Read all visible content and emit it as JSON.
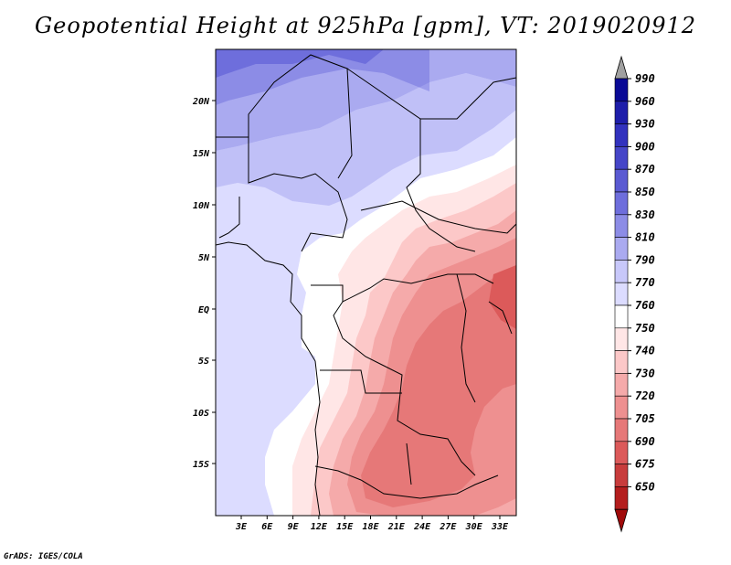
{
  "title": "Geopotential Height at 925hPa [gpm], VT: 2019020912",
  "footer": "GrADS: IGES/COLA",
  "map": {
    "lat_labels": [
      "20N",
      "15N",
      "10N",
      "5N",
      "EQ",
      "5S",
      "10S",
      "15S"
    ],
    "lon_labels": [
      "3E",
      "6E",
      "9E",
      "12E",
      "15E",
      "18E",
      "21E",
      "24E",
      "27E",
      "30E",
      "33E"
    ]
  },
  "colorbar": {
    "levels": [
      "990",
      "960",
      "930",
      "900",
      "870",
      "850",
      "830",
      "810",
      "790",
      "770",
      "760",
      "750",
      "740",
      "730",
      "720",
      "705",
      "690",
      "675",
      "650"
    ],
    "colors": {
      "c1": "#0a0a96",
      "c2": "#1e1eaa",
      "c3": "#3232be",
      "c4": "#4646c8",
      "c5": "#5a5ad2",
      "c6": "#6e6edc",
      "c7": "#8c8ce6",
      "c8": "#aaaaf0",
      "c9": "#c8c8fa",
      "c10": "#dcdcff",
      "c11": "#ffffff",
      "c12": "#ffe6e6",
      "c13": "#fcc8c8",
      "c14": "#f5aaaa",
      "c15": "#ee9090",
      "c16": "#e67878",
      "c17": "#dc5a5a",
      "c18": "#c83c3c",
      "c19": "#b41e1e",
      "c20": "#a00a0a"
    },
    "top_arrow_color": "#a0a0a0"
  }
}
